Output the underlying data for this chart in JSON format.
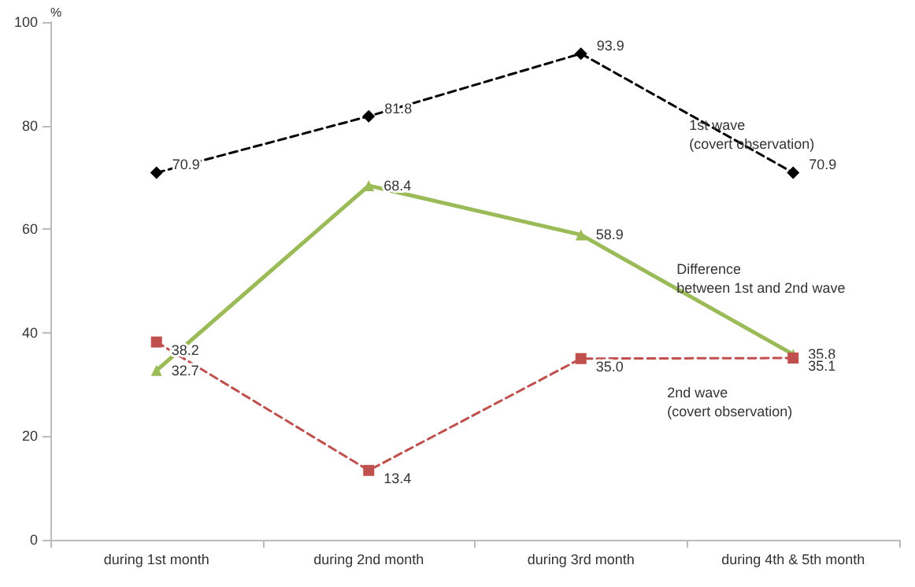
{
  "chart_data": {
    "type": "line",
    "ylabel": "%",
    "categories": [
      "during 1st month",
      "during 2nd month",
      "during 3rd month",
      "during 4th & 5th month"
    ],
    "series": [
      {
        "name": "1st wave\n(covert observation)",
        "color": "#000000",
        "values": [
          70.9,
          81.8,
          93.9,
          70.9
        ],
        "value_labels": [
          "70.9",
          "81.8",
          "93.9",
          "70.9"
        ],
        "marker": "diamond",
        "line_style": "dashed"
      },
      {
        "name": "Difference\nbetween 1st and 2nd wave",
        "color": "#9bbb59",
        "values": [
          32.7,
          68.4,
          58.9,
          35.8
        ],
        "value_labels": [
          "32.7",
          "68.4",
          "58.9",
          "35.8"
        ],
        "marker": "triangle",
        "line_style": "solid"
      },
      {
        "name": "2nd wave\n(covert observation)",
        "color": "#c0504d",
        "values": [
          38.2,
          13.4,
          35.0,
          35.1
        ],
        "value_labels": [
          "38.2",
          "13.4",
          "35.0",
          "35.1"
        ],
        "marker": "square",
        "line_style": "dashed"
      }
    ],
    "ylim": [
      0,
      100
    ],
    "yticks": [
      0,
      20,
      40,
      60,
      80,
      100
    ],
    "grid": false,
    "legend": false
  }
}
